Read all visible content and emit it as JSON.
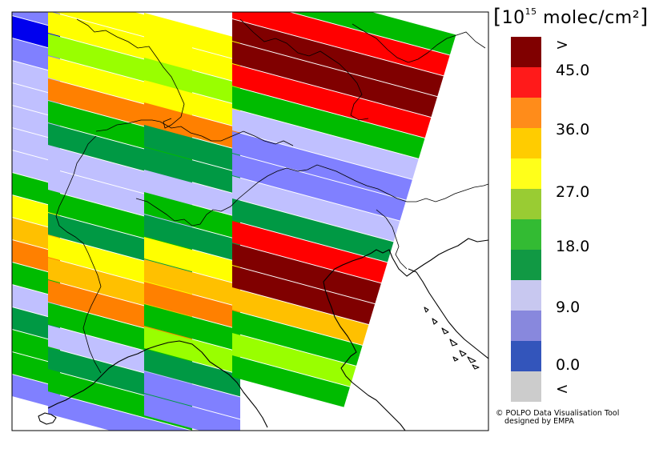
{
  "legend": {
    "unit_base": "10",
    "unit_exponent": "15",
    "unit_rest": "molec/cm²",
    "bins": [
      {
        "color": "#800000"
      },
      {
        "color": "#ff1a1a"
      },
      {
        "color": "#ff8c1a"
      },
      {
        "color": "#ffcc00"
      },
      {
        "color": "#ffff1a"
      },
      {
        "color": "#99cc33"
      },
      {
        "color": "#33bb33"
      },
      {
        "color": "#119944"
      },
      {
        "color": "#c8c8f0"
      },
      {
        "color": "#8888dd"
      },
      {
        "color": "#3355bb"
      },
      {
        "color": "#cccccc"
      }
    ],
    "labels": [
      ">",
      "45.0",
      "36.0",
      "27.0",
      "18.0",
      "9.0",
      "0.0",
      "<"
    ]
  },
  "credit": {
    "line1": "© POLPO Data Visualisation Tool",
    "line2": "designed by EMPA"
  },
  "map_colors": {
    "dark_red": "#800000",
    "red": "#ff0000",
    "orange": "#ff8000",
    "amber": "#ffc000",
    "yellow": "#ffff00",
    "lime": "#99ff00",
    "green": "#00bb00",
    "dark_green": "#009944",
    "light_lavender": "#c0c0ff",
    "lavender": "#8080ff",
    "blue": "#0000ee"
  }
}
